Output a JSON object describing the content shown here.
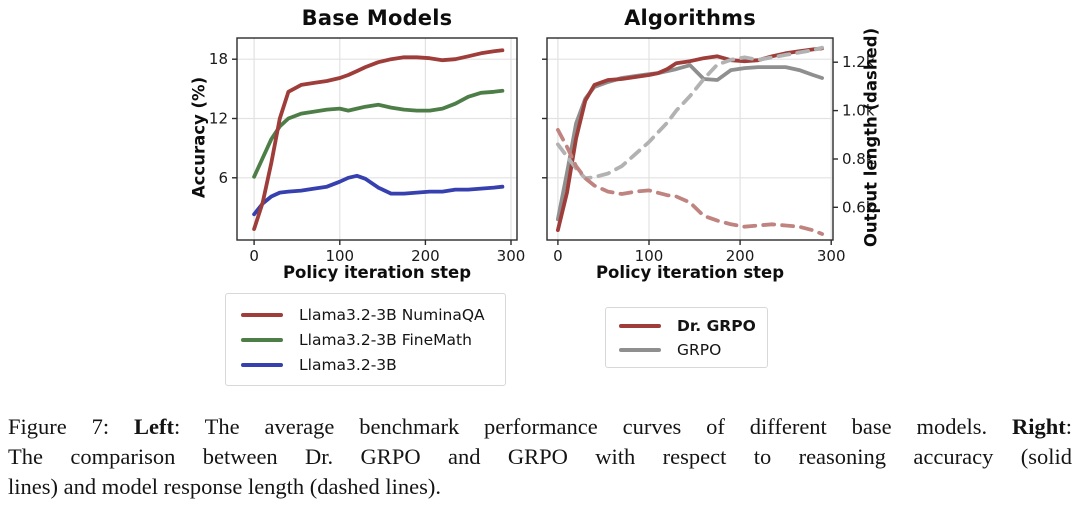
{
  "figure": {
    "caption_lines": [
      [
        {
          "t": "Figure 7: "
        },
        {
          "t": "Left",
          "b": true
        },
        {
          "t": ": The average benchmark performance curves of different base models. "
        },
        {
          "t": "Right",
          "b": true
        },
        {
          "t": ":"
        }
      ],
      [
        {
          "t": "The comparison between Dr. GRPO and GRPO with respect to reasoning accuracy (solid"
        }
      ],
      [
        {
          "t": "lines) and model response length (dashed lines)."
        }
      ]
    ]
  },
  "colors": {
    "red": "#9e3d39",
    "green": "#4e7e48",
    "blue": "#3640af",
    "gray": "#8f8f8f",
    "red_dash": "#c08480",
    "gray_dash": "#b2b2b2",
    "grid": "#e2e2e2",
    "spine": "#2b2b2b",
    "tick_text": "#1a1a1a"
  },
  "chart_data": [
    {
      "type": "line",
      "title": "Base Models",
      "xlabel": "Policy iteration step",
      "ylabel": "Accuracy (%)",
      "xlim": [
        -20,
        307
      ],
      "ylim": [
        -0.3,
        20.15
      ],
      "xticks": [
        0,
        100,
        200,
        300
      ],
      "xtick_labels": [
        "0",
        "100",
        "200",
        "300"
      ],
      "yticks_left": [
        6,
        12,
        18
      ],
      "ytick_left_labels": [
        "6",
        "12",
        "18"
      ],
      "grid": true,
      "legend_position": "below",
      "x": [
        0,
        10,
        20,
        30,
        40,
        55,
        70,
        85,
        100,
        110,
        120,
        130,
        145,
        160,
        175,
        190,
        205,
        220,
        235,
        250,
        265,
        280,
        290
      ],
      "series": [
        {
          "name": "Llama3.2-3B",
          "color": "blue",
          "style": "solid",
          "axis": "left",
          "values": [
            2.3,
            3.4,
            4.1,
            4.5,
            4.6,
            4.7,
            4.9,
            5.1,
            5.6,
            6.0,
            6.2,
            5.9,
            5.0,
            4.4,
            4.4,
            4.5,
            4.6,
            4.6,
            4.8,
            4.8,
            4.9,
            5.0,
            5.1
          ]
        },
        {
          "name": "Llama3.2-3B FineMath",
          "color": "green",
          "style": "solid",
          "axis": "left",
          "values": [
            6.1,
            8.0,
            9.9,
            11.2,
            12.0,
            12.5,
            12.7,
            12.9,
            13.0,
            12.8,
            13.0,
            13.2,
            13.4,
            13.1,
            12.9,
            12.8,
            12.8,
            13.0,
            13.5,
            14.2,
            14.6,
            14.7,
            14.8
          ]
        },
        {
          "name": "Llama3.2-3B NuminaQA",
          "color": "red",
          "style": "solid",
          "axis": "left",
          "values": [
            0.8,
            3.5,
            7.5,
            12.0,
            14.7,
            15.4,
            15.6,
            15.8,
            16.1,
            16.4,
            16.8,
            17.2,
            17.7,
            18.0,
            18.2,
            18.2,
            18.1,
            17.9,
            18.0,
            18.3,
            18.6,
            18.8,
            18.9
          ]
        }
      ],
      "legend": {
        "items": [
          {
            "label": "Llama3.2-3B NuminaQA",
            "color": "red",
            "bold": false
          },
          {
            "label": "Llama3.2-3B FineMath",
            "color": "green",
            "bold": false
          },
          {
            "label": "Llama3.2-3B",
            "color": "blue",
            "bold": false
          }
        ]
      }
    },
    {
      "type": "line",
      "title": "Algorithms",
      "xlabel": "Policy iteration step",
      "ylabel_right": "Output length (dashed)",
      "xlim": [
        -12,
        302
      ],
      "ylim": [
        -0.3,
        20.15
      ],
      "ylim_right": [
        0.465,
        1.3
      ],
      "xticks": [
        0,
        100,
        200,
        300
      ],
      "xtick_labels": [
        "0",
        "100",
        "200",
        "300"
      ],
      "yticks_left": [
        6,
        12,
        18
      ],
      "yticks_right": [
        0.6,
        0.8,
        1.0,
        1.2
      ],
      "ytick_right_labels": [
        "0.6k",
        "0.8k",
        "1.0k",
        "1.2k"
      ],
      "grid": true,
      "legend_position": "below",
      "x": [
        0,
        10,
        20,
        30,
        40,
        55,
        70,
        85,
        100,
        110,
        120,
        130,
        145,
        160,
        175,
        190,
        205,
        220,
        235,
        250,
        265,
        280,
        290
      ],
      "series": [
        {
          "name": "GRPO accuracy",
          "color": "gray",
          "style": "solid",
          "axis": "left",
          "values": [
            1.8,
            6.5,
            11.5,
            14.0,
            15.2,
            15.7,
            16.1,
            16.3,
            16.5,
            16.6,
            16.8,
            17.0,
            17.4,
            16.0,
            15.9,
            16.9,
            17.1,
            17.2,
            17.2,
            17.2,
            16.9,
            16.4,
            16.1
          ]
        },
        {
          "name": "Dr. GRPO accuracy",
          "color": "red",
          "style": "solid",
          "axis": "left",
          "values": [
            0.7,
            4.5,
            10.0,
            13.8,
            15.4,
            15.9,
            16.0,
            16.2,
            16.4,
            16.6,
            17.0,
            17.6,
            17.8,
            18.1,
            18.3,
            17.9,
            17.8,
            17.9,
            18.3,
            18.6,
            18.8,
            19.0,
            19.1
          ]
        },
        {
          "name": "GRPO output length (k)",
          "color": "gray_dash",
          "style": "dashed",
          "axis": "right",
          "values": [
            0.86,
            0.81,
            0.76,
            0.72,
            0.725,
            0.74,
            0.77,
            0.82,
            0.87,
            0.91,
            0.95,
            1.0,
            1.06,
            1.13,
            1.19,
            1.21,
            1.22,
            1.21,
            1.22,
            1.23,
            1.24,
            1.25,
            1.26
          ]
        },
        {
          "name": "Dr. GRPO output length (k)",
          "color": "red_dash",
          "style": "dashed",
          "axis": "right",
          "values": [
            0.92,
            0.85,
            0.77,
            0.72,
            0.69,
            0.665,
            0.655,
            0.665,
            0.67,
            0.66,
            0.65,
            0.645,
            0.62,
            0.565,
            0.545,
            0.53,
            0.52,
            0.525,
            0.53,
            0.525,
            0.52,
            0.505,
            0.49
          ]
        }
      ],
      "legend": {
        "items": [
          {
            "label": "Dr. GRPO",
            "color": "red",
            "bold": true
          },
          {
            "label": "GRPO",
            "color": "gray",
            "bold": false
          }
        ]
      }
    }
  ]
}
